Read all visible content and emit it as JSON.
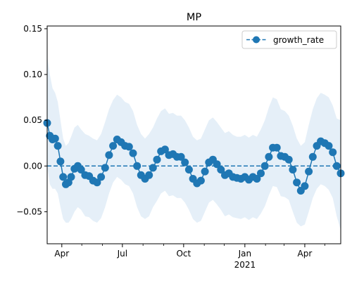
{
  "chart_data": {
    "type": "line",
    "title": "MP",
    "xlabel": "",
    "ylabel": "",
    "x_range": [
      "2020-03-10",
      "2021-05-25"
    ],
    "ylim": [
      -0.085,
      0.153
    ],
    "y_ticks": [
      -0.05,
      0.0,
      0.05,
      0.1,
      0.15
    ],
    "y_tick_labels": [
      "−0.05",
      "0.00",
      "0.05",
      "0.10",
      "0.15"
    ],
    "x_ticks": [
      {
        "date": "2020-04-01",
        "label": "Apr"
      },
      {
        "date": "2020-07-01",
        "label": "Jul"
      },
      {
        "date": "2020-10-01",
        "label": "Oct"
      },
      {
        "date": "2021-01-01",
        "label": "Jan",
        "sublabel": "2021"
      },
      {
        "date": "2021-04-01",
        "label": "Apr"
      }
    ],
    "x_minor_ticks": [
      "2020-05-01",
      "2020-06-01",
      "2020-08-01",
      "2020-09-01",
      "2020-11-01",
      "2020-12-01",
      "2021-02-01",
      "2021-03-01",
      "2021-05-01"
    ],
    "grid": false,
    "legend": {
      "position": "top-right",
      "entries": [
        "growth_rate"
      ]
    },
    "reference_line": {
      "y": 0.0,
      "style": "dashed"
    },
    "colors": {
      "series": "#1f77b4",
      "band": "#dce9f5"
    },
    "series": [
      {
        "name": "growth_rate",
        "marker": "circle",
        "band": "lower/upper confidence interval",
        "points": [
          {
            "x": "2020-03-10",
            "y": 0.047,
            "lo": 0.0,
            "hi": 0.12
          },
          {
            "x": "2020-03-14",
            "y": 0.033,
            "lo": -0.02,
            "hi": 0.1
          },
          {
            "x": "2020-03-18",
            "y": 0.029,
            "lo": -0.025,
            "hi": 0.085
          },
          {
            "x": "2020-03-22",
            "y": 0.03,
            "lo": -0.025,
            "hi": 0.08
          },
          {
            "x": "2020-03-26",
            "y": 0.022,
            "lo": -0.03,
            "hi": 0.07
          },
          {
            "x": "2020-03-30",
            "y": 0.005,
            "lo": -0.045,
            "hi": 0.05
          },
          {
            "x": "2020-04-03",
            "y": -0.012,
            "lo": -0.058,
            "hi": 0.03
          },
          {
            "x": "2020-04-07",
            "y": -0.02,
            "lo": -0.062,
            "hi": 0.022
          },
          {
            "x": "2020-04-11",
            "y": -0.018,
            "lo": -0.062,
            "hi": 0.025
          },
          {
            "x": "2020-04-15",
            "y": -0.012,
            "lo": -0.058,
            "hi": 0.032
          },
          {
            "x": "2020-04-20",
            "y": -0.003,
            "lo": -0.05,
            "hi": 0.042
          },
          {
            "x": "2020-04-25",
            "y": 0.0,
            "lo": -0.045,
            "hi": 0.045
          },
          {
            "x": "2020-04-30",
            "y": -0.004,
            "lo": -0.048,
            "hi": 0.04
          },
          {
            "x": "2020-05-06",
            "y": -0.01,
            "lo": -0.055,
            "hi": 0.035
          },
          {
            "x": "2020-05-12",
            "y": -0.011,
            "lo": -0.056,
            "hi": 0.033
          },
          {
            "x": "2020-05-18",
            "y": -0.016,
            "lo": -0.06,
            "hi": 0.03
          },
          {
            "x": "2020-05-24",
            "y": -0.018,
            "lo": -0.062,
            "hi": 0.028
          },
          {
            "x": "2020-05-30",
            "y": -0.012,
            "lo": -0.057,
            "hi": 0.035
          },
          {
            "x": "2020-06-05",
            "y": -0.002,
            "lo": -0.045,
            "hi": 0.048
          },
          {
            "x": "2020-06-11",
            "y": 0.012,
            "lo": -0.03,
            "hi": 0.062
          },
          {
            "x": "2020-06-17",
            "y": 0.022,
            "lo": -0.018,
            "hi": 0.072
          },
          {
            "x": "2020-06-23",
            "y": 0.029,
            "lo": -0.012,
            "hi": 0.078
          },
          {
            "x": "2020-06-29",
            "y": 0.026,
            "lo": -0.015,
            "hi": 0.075
          },
          {
            "x": "2020-07-05",
            "y": 0.022,
            "lo": -0.02,
            "hi": 0.07
          },
          {
            "x": "2020-07-11",
            "y": 0.021,
            "lo": -0.022,
            "hi": 0.068
          },
          {
            "x": "2020-07-17",
            "y": 0.014,
            "lo": -0.03,
            "hi": 0.06
          },
          {
            "x": "2020-07-23",
            "y": 0.0,
            "lo": -0.045,
            "hi": 0.045
          },
          {
            "x": "2020-07-29",
            "y": -0.01,
            "lo": -0.055,
            "hi": 0.035
          },
          {
            "x": "2020-08-04",
            "y": -0.014,
            "lo": -0.058,
            "hi": 0.03
          },
          {
            "x": "2020-08-10",
            "y": -0.01,
            "lo": -0.055,
            "hi": 0.035
          },
          {
            "x": "2020-08-16",
            "y": -0.002,
            "lo": -0.045,
            "hi": 0.042
          },
          {
            "x": "2020-08-22",
            "y": 0.007,
            "lo": -0.038,
            "hi": 0.052
          },
          {
            "x": "2020-08-28",
            "y": 0.016,
            "lo": -0.03,
            "hi": 0.06
          },
          {
            "x": "2020-09-03",
            "y": 0.018,
            "lo": -0.027,
            "hi": 0.063
          },
          {
            "x": "2020-09-09",
            "y": 0.012,
            "lo": -0.033,
            "hi": 0.057
          },
          {
            "x": "2020-09-15",
            "y": 0.013,
            "lo": -0.032,
            "hi": 0.058
          },
          {
            "x": "2020-09-21",
            "y": 0.01,
            "lo": -0.035,
            "hi": 0.055
          },
          {
            "x": "2020-09-27",
            "y": 0.01,
            "lo": -0.035,
            "hi": 0.055
          },
          {
            "x": "2020-10-03",
            "y": 0.004,
            "lo": -0.04,
            "hi": 0.05
          },
          {
            "x": "2020-10-09",
            "y": -0.004,
            "lo": -0.048,
            "hi": 0.042
          },
          {
            "x": "2020-10-15",
            "y": -0.014,
            "lo": -0.058,
            "hi": 0.032
          },
          {
            "x": "2020-10-21",
            "y": -0.019,
            "lo": -0.062,
            "hi": 0.028
          },
          {
            "x": "2020-10-27",
            "y": -0.016,
            "lo": -0.06,
            "hi": 0.03
          },
          {
            "x": "2020-11-02",
            "y": -0.006,
            "lo": -0.05,
            "hi": 0.04
          },
          {
            "x": "2020-11-08",
            "y": 0.004,
            "lo": -0.04,
            "hi": 0.05
          },
          {
            "x": "2020-11-14",
            "y": 0.007,
            "lo": -0.037,
            "hi": 0.053
          },
          {
            "x": "2020-11-20",
            "y": 0.002,
            "lo": -0.042,
            "hi": 0.048
          },
          {
            "x": "2020-11-26",
            "y": -0.004,
            "lo": -0.048,
            "hi": 0.042
          },
          {
            "x": "2020-12-02",
            "y": -0.01,
            "lo": -0.055,
            "hi": 0.036
          },
          {
            "x": "2020-12-08",
            "y": -0.008,
            "lo": -0.053,
            "hi": 0.038
          },
          {
            "x": "2020-12-14",
            "y": -0.012,
            "lo": -0.056,
            "hi": 0.034
          },
          {
            "x": "2020-12-20",
            "y": -0.013,
            "lo": -0.057,
            "hi": 0.032
          },
          {
            "x": "2020-12-26",
            "y": -0.014,
            "lo": -0.058,
            "hi": 0.032
          },
          {
            "x": "2021-01-01",
            "y": -0.012,
            "lo": -0.056,
            "hi": 0.034
          },
          {
            "x": "2021-01-07",
            "y": -0.015,
            "lo": -0.059,
            "hi": 0.031
          },
          {
            "x": "2021-01-13",
            "y": -0.012,
            "lo": -0.056,
            "hi": 0.034
          },
          {
            "x": "2021-01-19",
            "y": -0.014,
            "lo": -0.058,
            "hi": 0.032
          },
          {
            "x": "2021-01-25",
            "y": -0.008,
            "lo": -0.052,
            "hi": 0.04
          },
          {
            "x": "2021-01-31",
            "y": 0.0,
            "lo": -0.044,
            "hi": 0.05
          },
          {
            "x": "2021-02-06",
            "y": 0.01,
            "lo": -0.032,
            "hi": 0.064
          },
          {
            "x": "2021-02-12",
            "y": 0.02,
            "lo": -0.022,
            "hi": 0.075
          },
          {
            "x": "2021-02-18",
            "y": 0.02,
            "lo": -0.023,
            "hi": 0.073
          },
          {
            "x": "2021-02-24",
            "y": 0.011,
            "lo": -0.033,
            "hi": 0.062
          },
          {
            "x": "2021-03-02",
            "y": 0.01,
            "lo": -0.034,
            "hi": 0.06
          },
          {
            "x": "2021-03-08",
            "y": 0.007,
            "lo": -0.037,
            "hi": 0.055
          },
          {
            "x": "2021-03-14",
            "y": -0.004,
            "lo": -0.05,
            "hi": 0.044
          },
          {
            "x": "2021-03-20",
            "y": -0.018,
            "lo": -0.062,
            "hi": 0.03
          },
          {
            "x": "2021-03-26",
            "y": -0.027,
            "lo": -0.066,
            "hi": 0.022
          },
          {
            "x": "2021-04-01",
            "y": -0.022,
            "lo": -0.064,
            "hi": 0.026
          },
          {
            "x": "2021-04-07",
            "y": -0.006,
            "lo": -0.05,
            "hi": 0.045
          },
          {
            "x": "2021-04-13",
            "y": 0.01,
            "lo": -0.035,
            "hi": 0.062
          },
          {
            "x": "2021-04-19",
            "y": 0.022,
            "lo": -0.025,
            "hi": 0.074
          },
          {
            "x": "2021-04-25",
            "y": 0.027,
            "lo": -0.02,
            "hi": 0.08
          },
          {
            "x": "2021-05-01",
            "y": 0.025,
            "lo": -0.022,
            "hi": 0.078
          },
          {
            "x": "2021-05-07",
            "y": 0.022,
            "lo": -0.026,
            "hi": 0.075
          },
          {
            "x": "2021-05-13",
            "y": 0.015,
            "lo": -0.035,
            "hi": 0.066
          },
          {
            "x": "2021-05-19",
            "y": 0.0,
            "lo": -0.055,
            "hi": 0.052
          },
          {
            "x": "2021-05-25",
            "y": -0.008,
            "lo": -0.07,
            "hi": 0.05
          }
        ]
      }
    ]
  }
}
